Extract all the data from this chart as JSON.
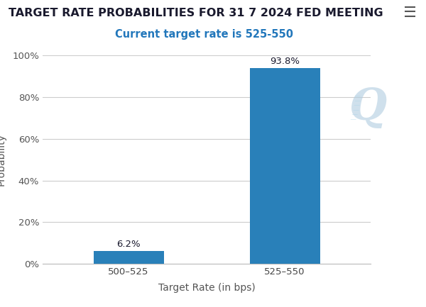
{
  "title": "TARGET RATE PROBABILITIES FOR 31 7 2024 FED MEETING",
  "subtitle": "Current target rate is 525-550",
  "categories": [
    "500–525",
    "525–550"
  ],
  "values": [
    6.2,
    93.8
  ],
  "bar_color": "#2980b9",
  "xlabel": "Target Rate (in bps)",
  "ylabel": "Probability",
  "ylim": [
    0,
    100
  ],
  "yticks": [
    0,
    20,
    40,
    60,
    80,
    100
  ],
  "ytick_labels": [
    "0%",
    "20%",
    "40%",
    "60%",
    "80%",
    "100%"
  ],
  "title_fontsize": 11.5,
  "subtitle_fontsize": 10.5,
  "subtitle_color": "#2277bb",
  "label_fontsize": 10,
  "tick_fontsize": 9.5,
  "value_label_fontsize": 9.5,
  "background_color": "#ffffff",
  "grid_color": "#cccccc",
  "title_color": "#1a1a2e",
  "bar_width": 0.45
}
